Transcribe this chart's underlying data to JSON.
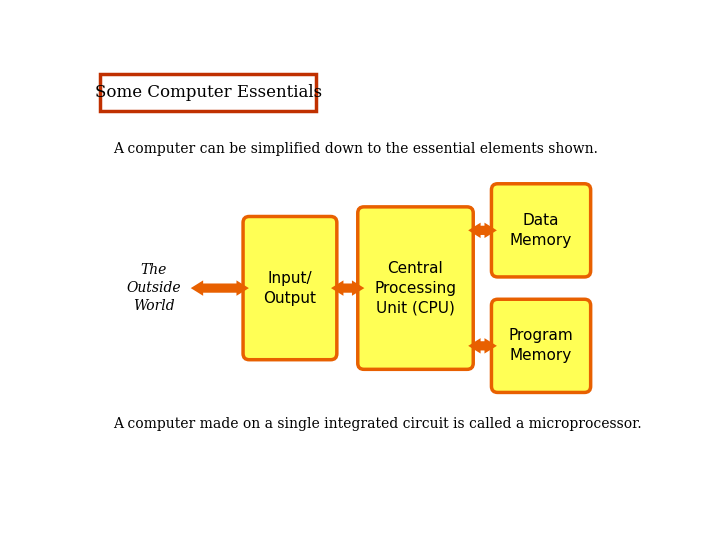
{
  "title": "Some Computer Essentials",
  "subtitle": "A computer can be simplified down to the essential elements shown.",
  "footer": "A computer made on a single integrated circuit is called a microprocessor.",
  "bg_color": "#ffffff",
  "box_fill": "#ffff55",
  "box_edge": "#e86000",
  "arrow_color": "#e86000",
  "title_box_edge": "#c03000",
  "font_size_title": 12,
  "font_size_subtitle": 10,
  "font_size_box": 10,
  "font_size_outside": 10,
  "font_size_footer": 10
}
